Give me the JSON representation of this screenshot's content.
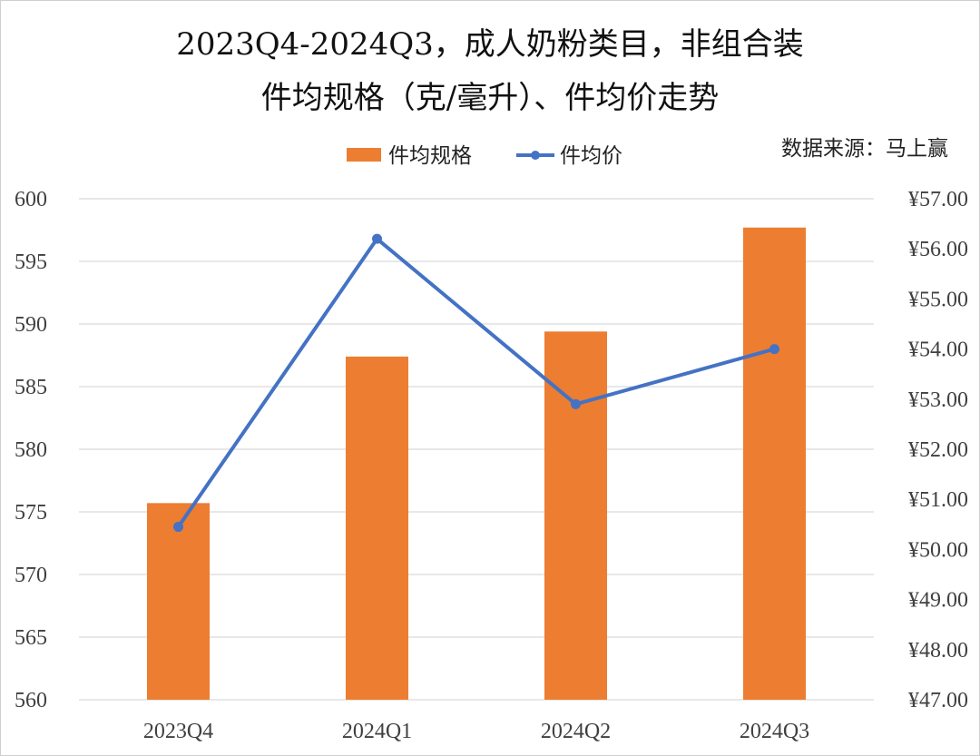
{
  "chart_data": {
    "type": "bar",
    "title_lines": [
      "2023Q4-2024Q3，成人奶粉类目，非组合装",
      "件均规格（克/毫升）、件均价走势"
    ],
    "source": "数据来源：马上赢",
    "categories": [
      "2023Q4",
      "2024Q1",
      "2024Q2",
      "2024Q3"
    ],
    "series": [
      {
        "name": "件均规格",
        "type": "bar",
        "axis": "left",
        "color": "#ED7D31",
        "values": [
          575.7,
          587.4,
          589.4,
          597.7
        ]
      },
      {
        "name": "件均价",
        "type": "line",
        "axis": "right",
        "color": "#4472C4",
        "values": [
          50.45,
          56.2,
          52.9,
          54.0
        ]
      }
    ],
    "y_left": {
      "min": 560,
      "max": 600,
      "ticks": [
        "560",
        "565",
        "570",
        "575",
        "580",
        "585",
        "590",
        "595",
        "600"
      ]
    },
    "y_right": {
      "min": 47,
      "max": 57,
      "ticks": [
        "¥47.00",
        "¥48.00",
        "¥49.00",
        "¥50.00",
        "¥51.00",
        "¥52.00",
        "¥53.00",
        "¥54.00",
        "¥55.00",
        "¥56.00",
        "¥57.00"
      ]
    },
    "grid": true,
    "legend_position": "top"
  }
}
